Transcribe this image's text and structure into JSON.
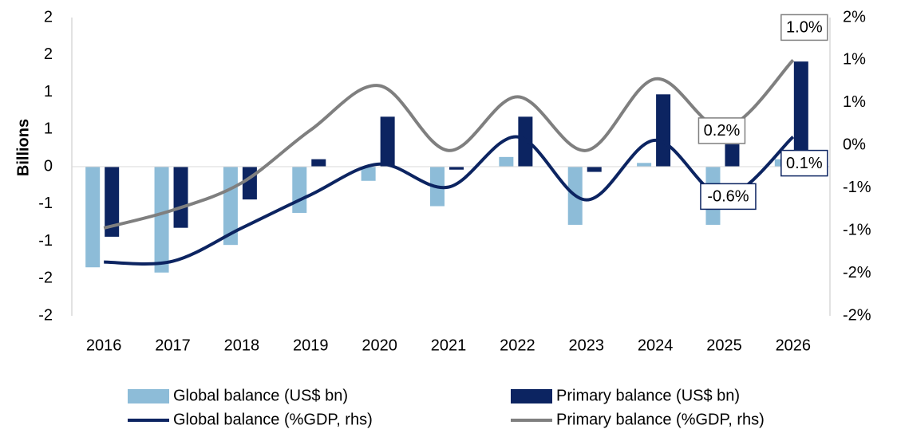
{
  "chart_data": {
    "type": "bar_line",
    "ylabel": "Billions",
    "categories": [
      "2016",
      "2017",
      "2018",
      "2019",
      "2020",
      "2021",
      "2022",
      "2023",
      "2024",
      "2025",
      "2026"
    ],
    "ylim": [
      -2,
      2
    ],
    "yticks": [
      {
        "value": 2,
        "label": "2"
      },
      {
        "value": 1.5,
        "label": "2"
      },
      {
        "value": 1,
        "label": "1"
      },
      {
        "value": 0.5,
        "label": "1"
      },
      {
        "value": 0,
        "label": "0"
      },
      {
        "value": -0.5,
        "label": "-1"
      },
      {
        "value": -1,
        "label": "-1"
      },
      {
        "value": -1.5,
        "label": "-2"
      },
      {
        "value": -2,
        "label": "-2"
      }
    ],
    "y2lim": [
      -2,
      1.5
    ],
    "y2ticks": [
      {
        "value": 1.5,
        "label": "2%"
      },
      {
        "value": 1,
        "label": "1%"
      },
      {
        "value": 0.5,
        "label": "1%"
      },
      {
        "value": 0,
        "label": "0%"
      },
      {
        "value": -0.5,
        "label": "-1%"
      },
      {
        "value": -1,
        "label": "-1%"
      },
      {
        "value": -1.5,
        "label": "-2%"
      },
      {
        "value": -2,
        "label": "-2%"
      }
    ],
    "series": [
      {
        "name": "Global balance (US$ bn)",
        "type": "bar",
        "color": "#8dbcd8",
        "values": [
          -1.35,
          -1.42,
          -1.05,
          -0.62,
          -0.19,
          -0.53,
          0.13,
          -0.78,
          0.05,
          -0.78,
          0.1
        ]
      },
      {
        "name": "Primary balance (US$ bn)",
        "type": "bar",
        "color": "#0c2461",
        "values": [
          -0.94,
          -0.82,
          -0.44,
          0.1,
          0.67,
          -0.04,
          0.67,
          -0.07,
          0.97,
          0.3,
          1.41
        ]
      },
      {
        "name": "Global balance (%GDP, rhs)",
        "type": "line",
        "axis": "y2",
        "color": "#0c2461",
        "values": [
          -1.37,
          -1.36,
          -0.97,
          -0.58,
          -0.22,
          -0.49,
          0.1,
          -0.64,
          0.06,
          -0.6,
          0.1
        ],
        "value_labels": [
          null,
          null,
          null,
          null,
          null,
          null,
          null,
          null,
          null,
          "-0.6%",
          "0.1%"
        ]
      },
      {
        "name": "Primary balance (%GDP, rhs)",
        "type": "line",
        "axis": "y2",
        "color": "#7f7f7f",
        "values": [
          -0.97,
          -0.76,
          -0.44,
          0.18,
          0.7,
          -0.06,
          0.57,
          -0.06,
          0.78,
          0.2,
          1.0
        ],
        "value_labels": [
          null,
          null,
          null,
          null,
          null,
          null,
          null,
          null,
          null,
          "0.2%",
          "1.0%"
        ]
      }
    ]
  }
}
